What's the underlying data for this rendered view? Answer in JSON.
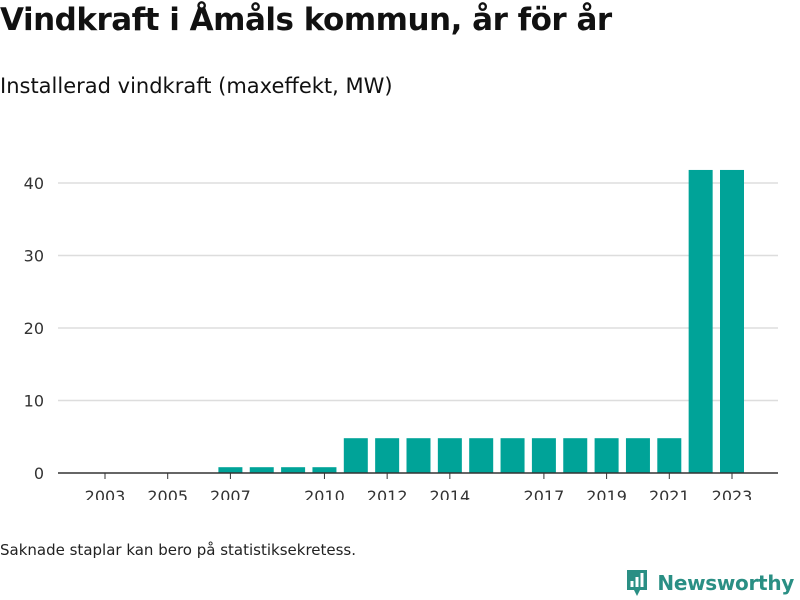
{
  "title": "Vindkraft i Åmåls kommun, år för år",
  "subtitle": "Installerad vindkraft (maxeffekt, MW)",
  "footnote": "Saknade staplar kan bero på statistiksekretess.",
  "brand": {
    "name": "Newsworthy",
    "icon": "newsworthy-logo-icon",
    "color": "#2a8f84"
  },
  "colors": {
    "bar": "#00a398",
    "grid": "#dddddd",
    "axis": "#333333"
  },
  "chart_data": {
    "type": "bar",
    "title": "",
    "xlabel": "",
    "ylabel": "",
    "categories": [
      "2003",
      "2004",
      "2005",
      "2006",
      "2007",
      "2008",
      "2009",
      "2010",
      "2011",
      "2012",
      "2013",
      "2014",
      "2015",
      "2016",
      "2017",
      "2018",
      "2019",
      "2020",
      "2021",
      "2022",
      "2023"
    ],
    "values": [
      0,
      0,
      0,
      0,
      0.8,
      0.8,
      0.8,
      0.8,
      4.8,
      4.8,
      4.8,
      4.8,
      4.8,
      4.8,
      4.8,
      4.8,
      4.8,
      4.8,
      4.8,
      41.8,
      41.8
    ],
    "x_tick_labels": [
      "2003",
      "2005",
      "2007",
      "2010",
      "2012",
      "2014",
      "2017",
      "2019",
      "2021",
      "2023"
    ],
    "y_ticks": [
      0,
      10,
      20,
      30,
      40
    ],
    "ylim": [
      0,
      45
    ],
    "grid": true,
    "legend": "none"
  }
}
